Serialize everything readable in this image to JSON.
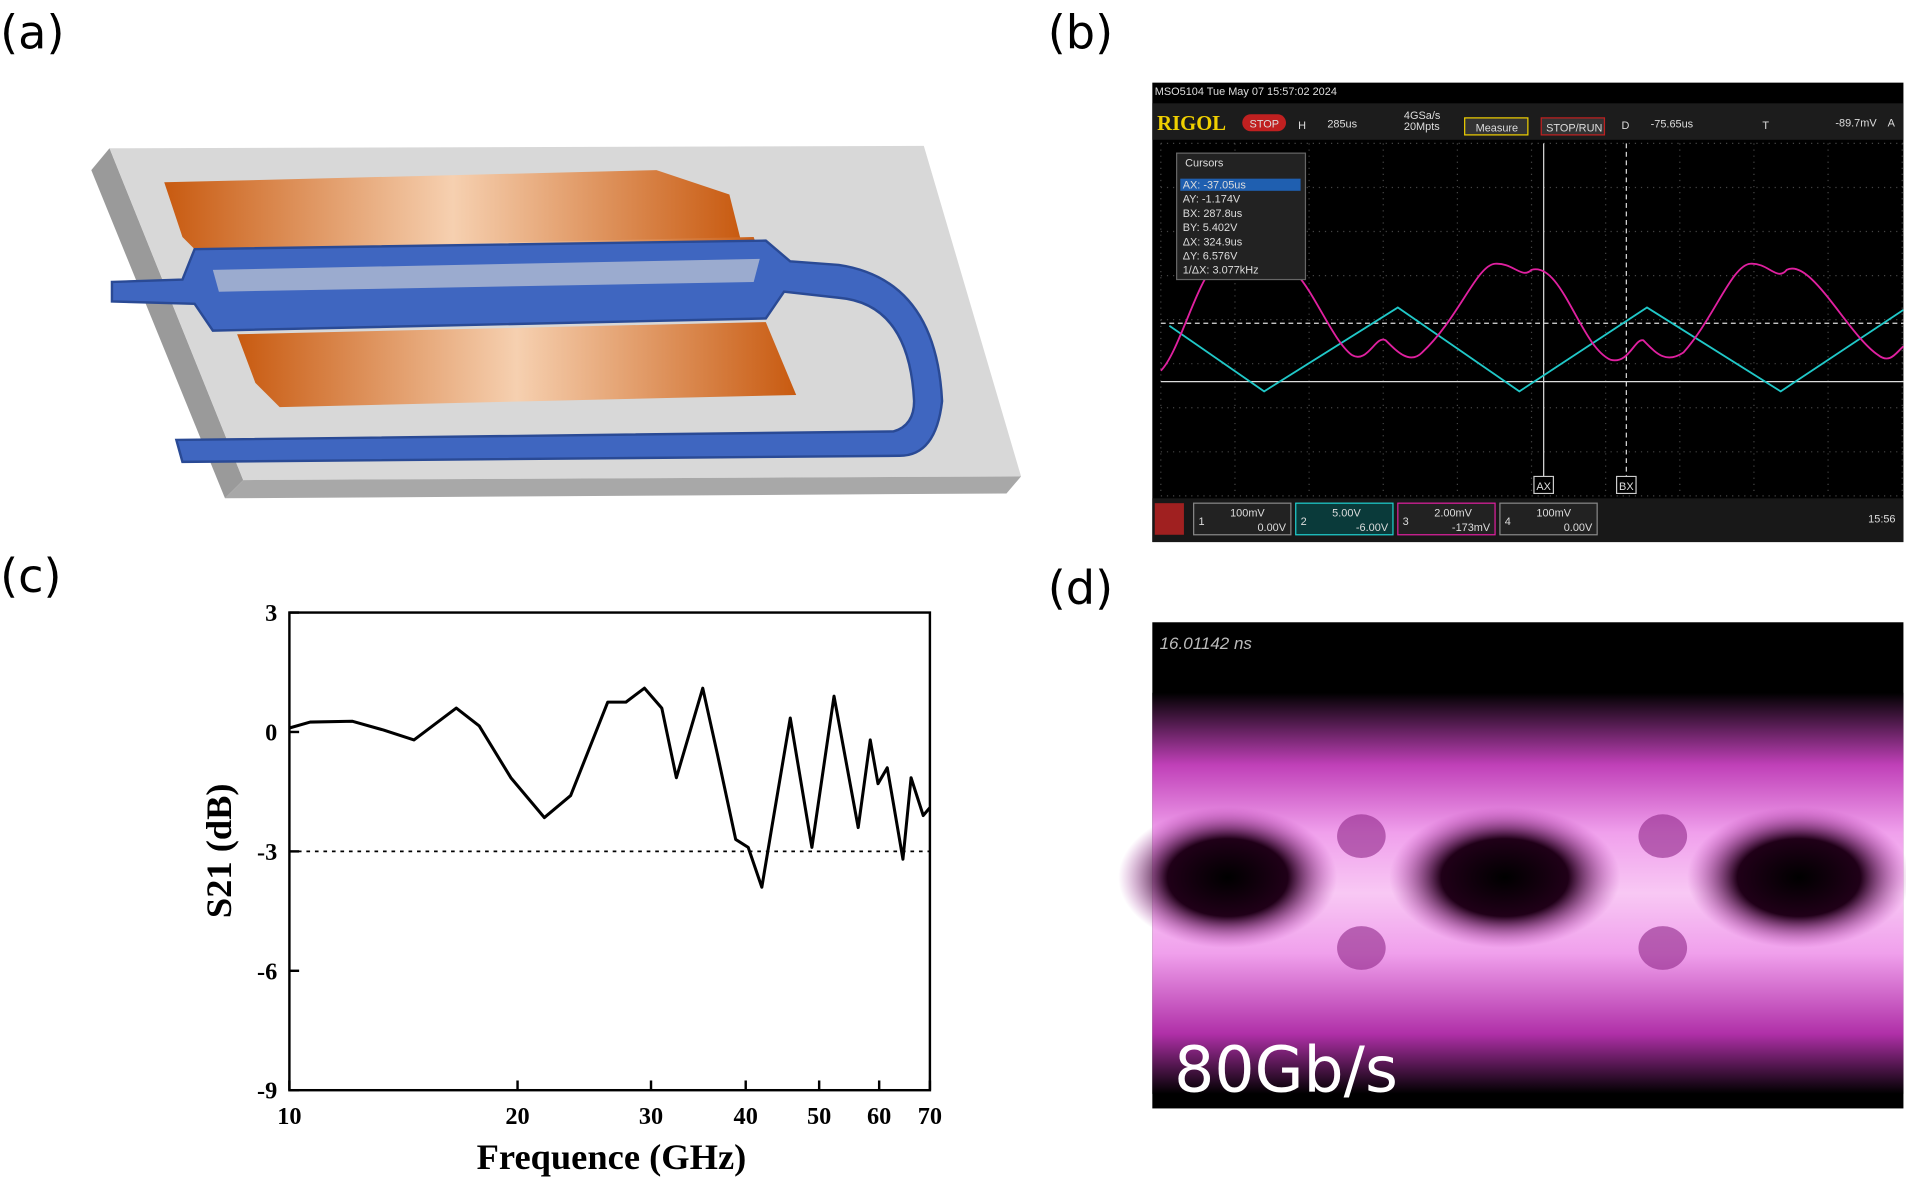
{
  "panel_labels": [
    "(a)",
    "(b)",
    "(c)",
    "(d)"
  ],
  "oscilloscope": {
    "header": "MSO5104  Tue May 07 15:57:02 2024",
    "brand": "RIGOL",
    "status": "STOP",
    "timebase_label": "H",
    "timebase": "285us",
    "sample_rate": "4GSa/s",
    "memory": "20Mpts",
    "measure": "Measure",
    "stop_run": "STOP/RUN",
    "delay_label": "D",
    "delay": "-75.65us",
    "trigger_label": "T",
    "trigger_level": "-89.7mV",
    "trigger_source": "A",
    "cursors_title": "Cursors",
    "cursors": [
      "AX:   -37.05us",
      "AY:   -1.174V",
      "BX:   287.8us",
      "BY:   5.402V",
      "ΔX:   324.9us",
      "ΔY:   6.576V",
      "1/ΔX: 3.077kHz"
    ],
    "cursor_a": "AX",
    "cursor_b": "BX",
    "channels": [
      {
        "num": "1",
        "scale": "100mV",
        "offset": "0.00V"
      },
      {
        "num": "2",
        "scale": "5.00V",
        "offset": "-6.00V"
      },
      {
        "num": "3",
        "scale": "2.00mV",
        "offset": "-173mV"
      },
      {
        "num": "4",
        "scale": "100mV",
        "offset": "0.00V"
      }
    ],
    "clock": "15:56"
  },
  "eye_diagram": {
    "timestamp": "16.01142 ns",
    "rate_label": "80Gb/s"
  },
  "chart_data": {
    "type": "line",
    "x_label": "Frequence (GHz)",
    "y_label": "S21 (dB)",
    "x_scale": "log",
    "xlim": [
      10,
      70
    ],
    "xticks": [
      10,
      20,
      30,
      40,
      50,
      60,
      70
    ],
    "ylim": [
      -9,
      3
    ],
    "yticks": [
      3,
      0,
      -3,
      -6,
      -9
    ],
    "reference_line": -3,
    "series": [
      {
        "color": "#000000",
        "x": [
          10,
          10.65,
          12.1,
          13.3,
          14.6,
          16.6,
          17.8,
          19.6,
          21.7,
          23.5,
          26.3,
          27.8,
          29.4,
          31.0,
          32.4,
          35.1,
          36.7,
          38.8,
          40.3,
          42.0,
          43.3,
          45.8,
          48.9,
          52.3,
          56.3,
          58.4,
          59.8,
          61.5,
          62.6,
          64.5,
          66.1,
          68.6,
          70
        ],
        "values": [
          0.1,
          0.25,
          0.27,
          0.05,
          -0.2,
          0.6,
          0.15,
          -1.15,
          -2.15,
          -1.6,
          0.75,
          0.75,
          1.1,
          0.6,
          -1.15,
          1.1,
          -0.55,
          -2.7,
          -2.9,
          -3.9,
          -2.4,
          0.35,
          -2.9,
          0.9,
          -2.4,
          -0.2,
          -1.3,
          -0.9,
          -1.75,
          -3.2,
          -1.15,
          -2.1,
          -1.9
        ]
      }
    ]
  }
}
